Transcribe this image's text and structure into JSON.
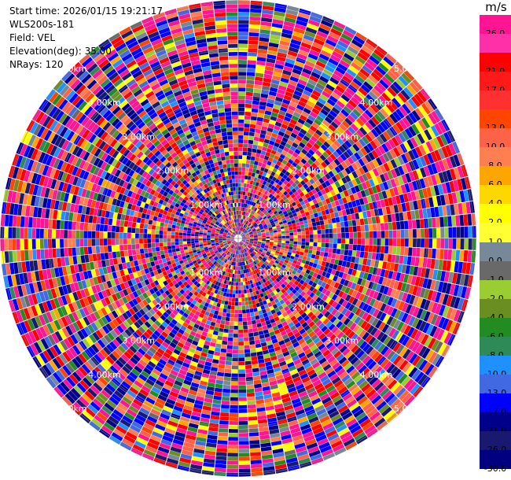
{
  "info": {
    "start_time": "Start time: 2026/01/15 19:21:17",
    "instrument": "WLS200s-181",
    "field": "Field: VEL",
    "elevation": "Elevation(deg): 35.00",
    "nrays": "NRays: 120"
  },
  "colorbar": {
    "unit": "m/s",
    "bins": [
      {
        "color": "#ff1493",
        "label": "26.0"
      },
      {
        "color": "#ff30a8",
        "label": ""
      },
      {
        "color": "#ff0000",
        "label": "21.0"
      },
      {
        "color": "#ff1a1a",
        "label": "17.0"
      },
      {
        "color": "#ff3030",
        "label": ""
      },
      {
        "color": "#ff4500",
        "label": "13.0"
      },
      {
        "color": "#ff6347",
        "label": "10.0"
      },
      {
        "color": "#ff7f50",
        "label": "8.0"
      },
      {
        "color": "#ffa500",
        "label": "6.0"
      },
      {
        "color": "#ffd700",
        "label": "4.0"
      },
      {
        "color": "#ffff00",
        "label": "2.0"
      },
      {
        "color": "#ffff33",
        "label": "1.0"
      },
      {
        "color": "#778899",
        "label": "0.0"
      },
      {
        "color": "#696969",
        "label": "-1.0"
      },
      {
        "color": "#9acd32",
        "label": "-2.0"
      },
      {
        "color": "#6b8e23",
        "label": "-4.0"
      },
      {
        "color": "#228b22",
        "label": "-6.0"
      },
      {
        "color": "#2e8b57",
        "label": "-8.0"
      },
      {
        "color": "#1e90ff",
        "label": "-10.0"
      },
      {
        "color": "#4169e1",
        "label": "-13.0"
      },
      {
        "color": "#0000ff",
        "label": "-17.0"
      },
      {
        "color": "#00008b",
        "label": "-21.0"
      },
      {
        "color": "#191970",
        "label": "-26.0"
      },
      {
        "color": "#000080",
        "label": "-30.0"
      }
    ]
  },
  "range_rings": [
    "1.00km",
    "2.00km",
    "3.00km",
    "4.00km",
    "5.00km"
  ],
  "nrays": 120,
  "ngates": 60,
  "color_weights": {
    "#ff1493": 7,
    "#ff0000": 5,
    "#0000ff": 6,
    "#00008b": 4,
    "#191970": 3,
    "#ff6347": 3,
    "#ff7f50": 2,
    "#ff4500": 2,
    "#ffff00": 2,
    "#ffa500": 1,
    "#4169e1": 2,
    "#1e90ff": 1,
    "#778899": 1,
    "#696969": 1,
    "#9acd32": 1,
    "#228b22": 1,
    "#2e8b57": 1,
    "#6b8e23": 1
  }
}
